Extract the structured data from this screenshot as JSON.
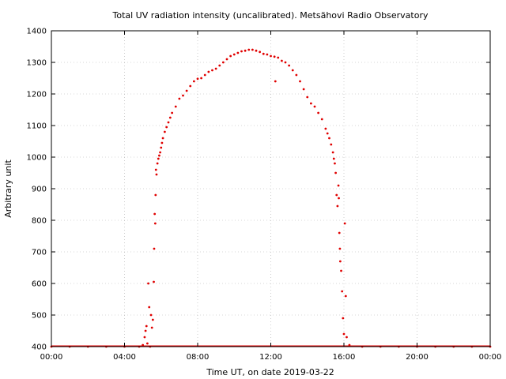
{
  "chart_data": {
    "type": "scatter",
    "title": "Total UV radiation intensity (uncalibrated). Metsähovi Radio Observatory",
    "xlabel": "Time UT, on date 2019-03-22",
    "ylabel": "Arbitrary unit",
    "x_unit": "hours UT",
    "xlim": [
      0,
      24
    ],
    "ylim": [
      400,
      1400
    ],
    "x_ticks": [
      {
        "value": 0,
        "label": "00:00"
      },
      {
        "value": 4,
        "label": "04:00"
      },
      {
        "value": 8,
        "label": "08:00"
      },
      {
        "value": 12,
        "label": "12:00"
      },
      {
        "value": 16,
        "label": "16:00"
      },
      {
        "value": 20,
        "label": "20:00"
      },
      {
        "value": 24,
        "label": "00:00"
      }
    ],
    "y_ticks": [
      400,
      500,
      600,
      700,
      800,
      900,
      1000,
      1100,
      1200,
      1300,
      1400
    ],
    "grid": true,
    "grid_style": "dotted",
    "marker_color": "#e00000",
    "series": [
      {
        "x": [
          0,
          1,
          2,
          3,
          4,
          4.8,
          5.0,
          5.1,
          5.15,
          5.2,
          5.25,
          5.3,
          5.35,
          5.4,
          5.45,
          5.5,
          5.55,
          5.6,
          5.62,
          5.65,
          5.68,
          5.7,
          5.72,
          5.75,
          5.8,
          5.85,
          5.9,
          5.95,
          6.0,
          6.05,
          6.1,
          6.2,
          6.3,
          6.4,
          6.5,
          6.6,
          6.8,
          7.0,
          7.2,
          7.4,
          7.6,
          7.8,
          8.0,
          8.2,
          8.4,
          8.6,
          8.8,
          9.0,
          9.2,
          9.4,
          9.6,
          9.8,
          10.0,
          10.2,
          10.4,
          10.6,
          10.8,
          11.0,
          11.2,
          11.4,
          11.6,
          11.8,
          12.0,
          12.2,
          12.25,
          12.4,
          12.6,
          12.8,
          13.0,
          13.2,
          13.4,
          13.6,
          13.8,
          14.0,
          14.2,
          14.4,
          14.6,
          14.8,
          15.0,
          15.1,
          15.2,
          15.3,
          15.4,
          15.45,
          15.5,
          15.55,
          15.6,
          15.65,
          15.7,
          15.72,
          15.75,
          15.78,
          15.8,
          15.85,
          15.9,
          15.95,
          16.0,
          16.05,
          16.1,
          16.15,
          16.3,
          17,
          18,
          19,
          20,
          21,
          22,
          23,
          24
        ],
        "y": [
          400,
          400,
          400,
          400,
          400,
          400,
          405,
          430,
          450,
          465,
          410,
          600,
          525,
          400,
          500,
          460,
          485,
          605,
          710,
          820,
          790,
          880,
          960,
          945,
          980,
          995,
          1005,
          1015,
          1030,
          1045,
          1060,
          1080,
          1095,
          1110,
          1125,
          1140,
          1160,
          1185,
          1195,
          1210,
          1225,
          1240,
          1248,
          1250,
          1260,
          1270,
          1275,
          1280,
          1290,
          1300,
          1310,
          1320,
          1325,
          1330,
          1335,
          1337,
          1340,
          1340,
          1337,
          1333,
          1327,
          1325,
          1320,
          1318,
          1240,
          1315,
          1305,
          1300,
          1290,
          1275,
          1260,
          1240,
          1215,
          1190,
          1170,
          1160,
          1140,
          1120,
          1090,
          1075,
          1060,
          1040,
          1015,
          995,
          980,
          950,
          880,
          845,
          910,
          870,
          760,
          710,
          670,
          640,
          575,
          490,
          440,
          790,
          560,
          430,
          405,
          400,
          400,
          400,
          400,
          400,
          400,
          400,
          400
        ]
      }
    ]
  }
}
